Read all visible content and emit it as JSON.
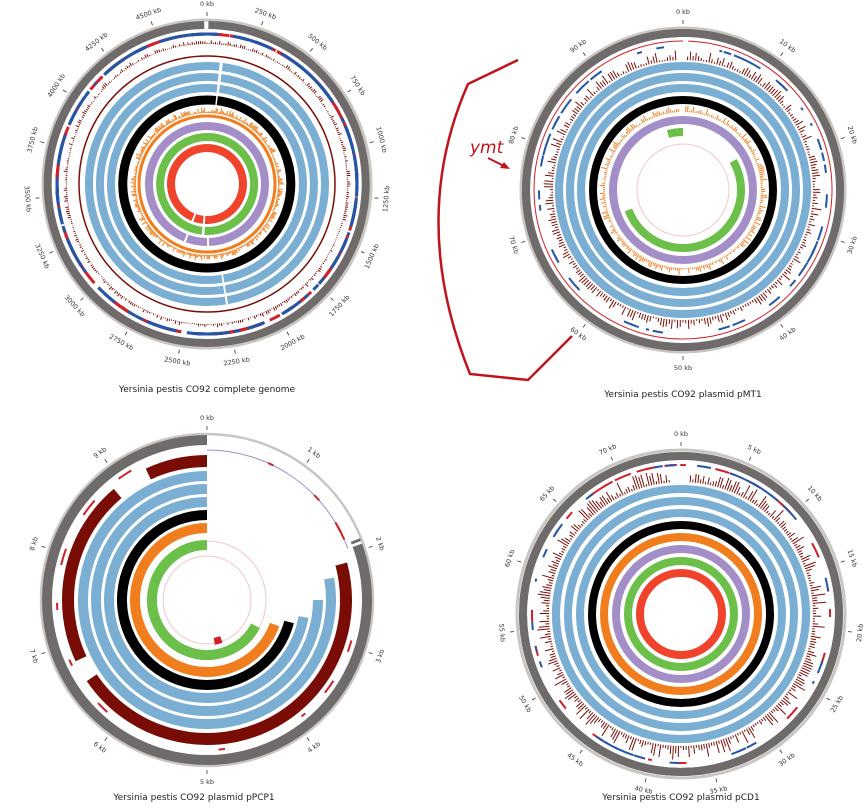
{
  "colors": {
    "ideogram": "#6e6b6a",
    "ideogram_outer": "#c9c6c2",
    "darkred": "#7a0c06",
    "red": "#d0202a",
    "blue": "#2456a8",
    "lightblue": "#7aaed3",
    "black": "#000000",
    "orange": "#f07e1e",
    "purple": "#a48ec8",
    "green": "#6cc04a",
    "tomato": "#f0432c",
    "pink": "#f2c8c8",
    "callout": "#c0141c"
  },
  "panels": [
    {
      "id": "genome",
      "caption": "Yersinia pestis CO92 complete genome",
      "ticks": [
        "0 kb",
        "250 kb",
        "500 kb",
        "750 kb",
        "1000 kb",
        "1250 kb",
        "1500 kb",
        "1750 kb",
        "2000 kb",
        "2250 kb",
        "2500 kb",
        "2750 kb",
        "3000 kb",
        "3250 kb",
        "3500 kb",
        "3750 kb",
        "4000 kb",
        "4250 kb",
        "4500 kb"
      ]
    },
    {
      "id": "pmt1",
      "caption": "Yersinia pestis CO92 plasmid pMT1",
      "ticks": [
        "0 kb",
        "10 kb",
        "20 kb",
        "30 kb",
        "40 kb",
        "50 kb",
        "60 kb",
        "70 kb",
        "80 kb",
        "90 kb"
      ]
    },
    {
      "id": "ppcp1",
      "caption": "Yersinia pestis CO92 plasmid pPCP1",
      "ticks": [
        "0 kb",
        "1 kb",
        "2 kb",
        "3 kb",
        "4 kb",
        "5 kb",
        "6 kb",
        "7 kb",
        "8 kb",
        "9 kb"
      ]
    },
    {
      "id": "pcd1",
      "caption": "Yersinia pestis CO92 plasmid pCD1",
      "ticks": [
        "0 kb",
        "5 kb",
        "10 kb",
        "15 kb",
        "20 kb",
        "25 kb",
        "30 kb",
        "35 kb",
        "40 kb",
        "45 kb",
        "50 kb",
        "55 kb",
        "60 kb",
        "65 kb",
        "70 kb"
      ]
    }
  ],
  "callout": {
    "label": "ymt"
  }
}
